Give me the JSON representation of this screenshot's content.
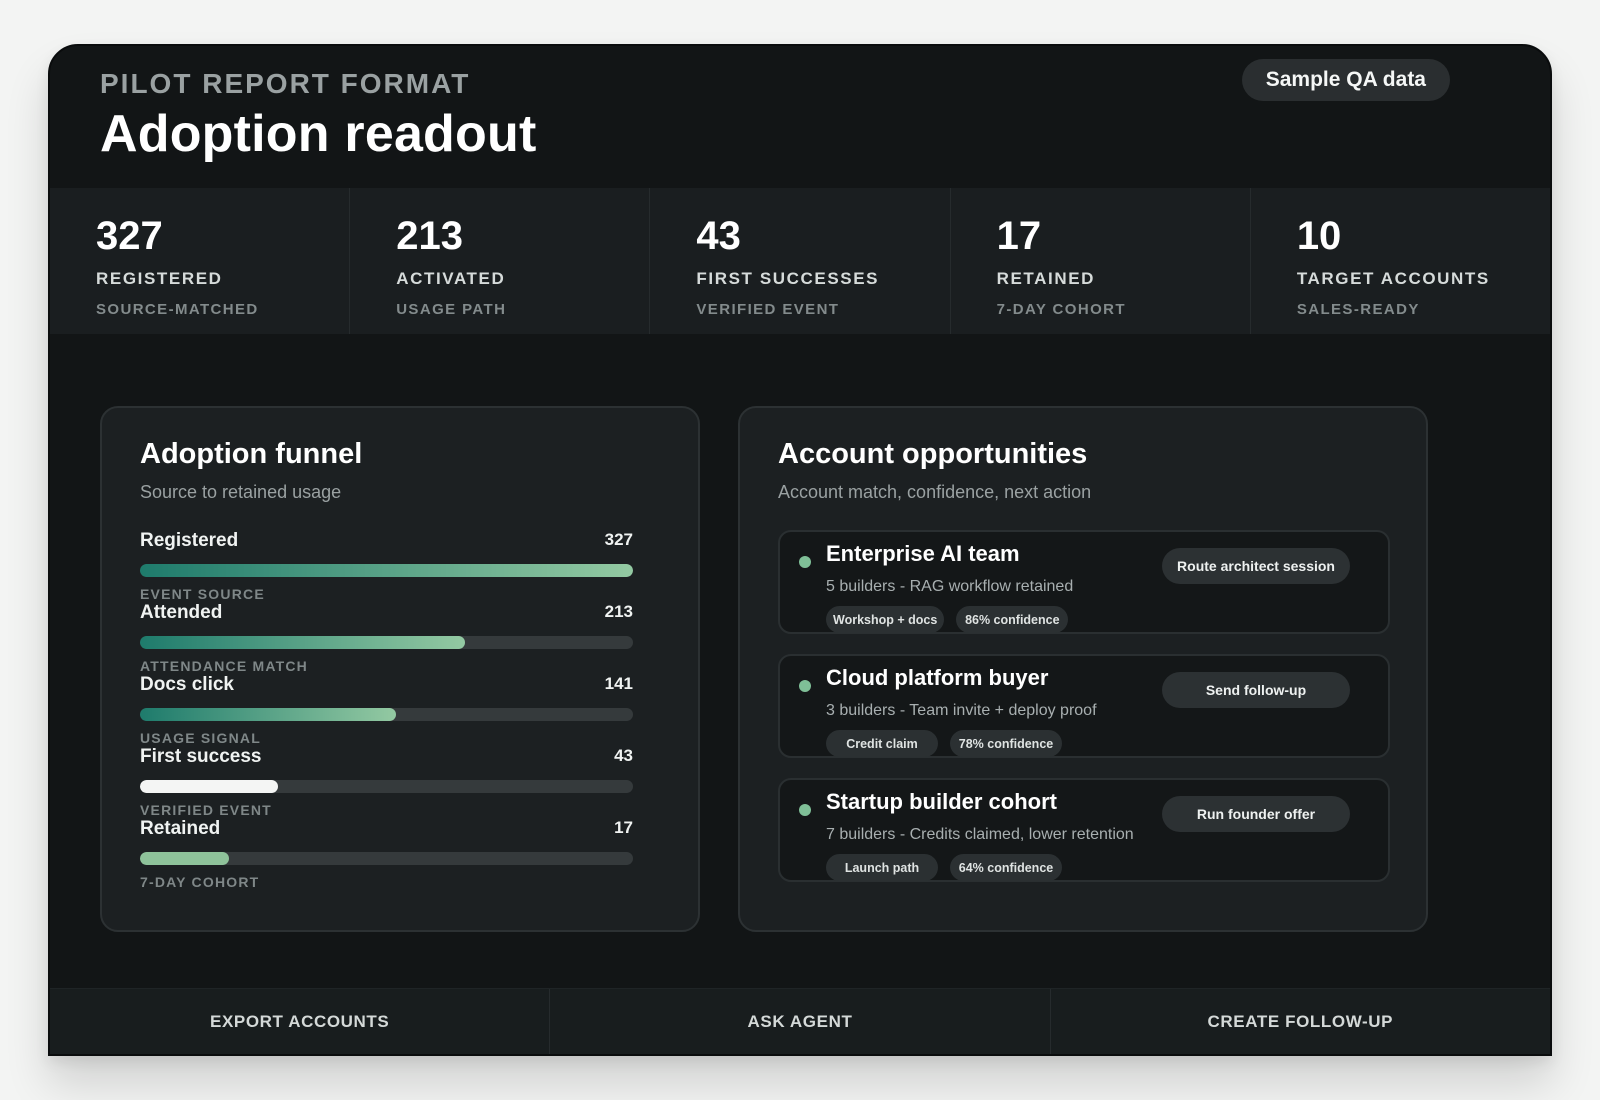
{
  "header": {
    "eyebrow": "PILOT REPORT FORMAT",
    "title": "Adoption readout",
    "badge": "Sample QA data"
  },
  "stats": [
    {
      "value": "327",
      "label": "REGISTERED",
      "sub": "SOURCE-MATCHED"
    },
    {
      "value": "213",
      "label": "ACTIVATED",
      "sub": "USAGE PATH"
    },
    {
      "value": "43",
      "label": "FIRST SUCCESSES",
      "sub": "VERIFIED EVENT"
    },
    {
      "value": "17",
      "label": "RETAINED",
      "sub": "7-DAY COHORT"
    },
    {
      "value": "10",
      "label": "TARGET ACCOUNTS",
      "sub": "SALES-READY"
    }
  ],
  "funnel": {
    "title": "Adoption funnel",
    "subtitle": "Source to retained usage",
    "rows": [
      {
        "label": "Registered",
        "count": "327",
        "note": "EVENT SOURCE",
        "fraction": 1.0,
        "style": "gradient"
      },
      {
        "label": "Attended",
        "count": "213",
        "note": "ATTENDANCE MATCH",
        "fraction": 0.66,
        "style": "gradient"
      },
      {
        "label": "Docs click",
        "count": "141",
        "note": "USAGE SIGNAL",
        "fraction": 0.52,
        "style": "gradient"
      },
      {
        "label": "First success",
        "count": "43",
        "note": "VERIFIED EVENT",
        "fraction": 0.28,
        "style": "white"
      },
      {
        "label": "Retained",
        "count": "17",
        "note": "7-DAY COHORT",
        "fraction": 0.18,
        "style": "mint"
      }
    ]
  },
  "accounts": {
    "title": "Account opportunities",
    "subtitle": "Account match, confidence, next action",
    "items": [
      {
        "name": "Enterprise AI team",
        "desc": "5 builders - RAG workflow retained",
        "tags": [
          "Workshop + docs",
          "86% confidence"
        ],
        "action": "Route architect session"
      },
      {
        "name": "Cloud platform buyer",
        "desc": "3 builders - Team invite + deploy proof",
        "tags": [
          "Credit claim",
          "78% confidence"
        ],
        "action": "Send follow-up"
      },
      {
        "name": "Startup builder cohort",
        "desc": "7 builders - Credits claimed, lower retention",
        "tags": [
          "Launch path",
          "64% confidence"
        ],
        "action": "Run founder offer"
      }
    ]
  },
  "footer": {
    "export_label": "EXPORT ACCOUNTS",
    "ask_label": "ASK AGENT",
    "create_label": "CREATE FOLLOW-UP"
  }
}
